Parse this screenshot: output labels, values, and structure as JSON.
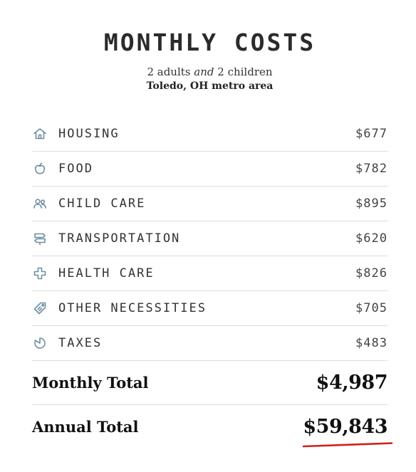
{
  "header": {
    "title": "MONTHLY COSTS",
    "household_adults": "2 adults",
    "household_and": "and",
    "household_children": "2 children",
    "location": "Toledo, OH metro area"
  },
  "costs": [
    {
      "label": "HOUSING",
      "amount": "$677",
      "icon": "house-icon"
    },
    {
      "label": "FOOD",
      "amount": "$782",
      "icon": "apple-icon"
    },
    {
      "label": "CHILD CARE",
      "amount": "$895",
      "icon": "people-icon"
    },
    {
      "label": "TRANSPORTATION",
      "amount": "$620",
      "icon": "signpost-icon"
    },
    {
      "label": "HEALTH CARE",
      "amount": "$826",
      "icon": "medical-cross-icon"
    },
    {
      "label": "OTHER NECESSITIES",
      "amount": "$705",
      "icon": "tag-icon"
    },
    {
      "label": "TAXES",
      "amount": "$483",
      "icon": "pie-slice-icon"
    }
  ],
  "totals": {
    "monthly_label": "Monthly Total",
    "monthly_value": "$4,987",
    "annual_label": "Annual Total",
    "annual_value": "$59,843"
  },
  "colors": {
    "icon": "#6d8fa3",
    "underline": "#d0201c",
    "divider": "#dcdcdc"
  }
}
